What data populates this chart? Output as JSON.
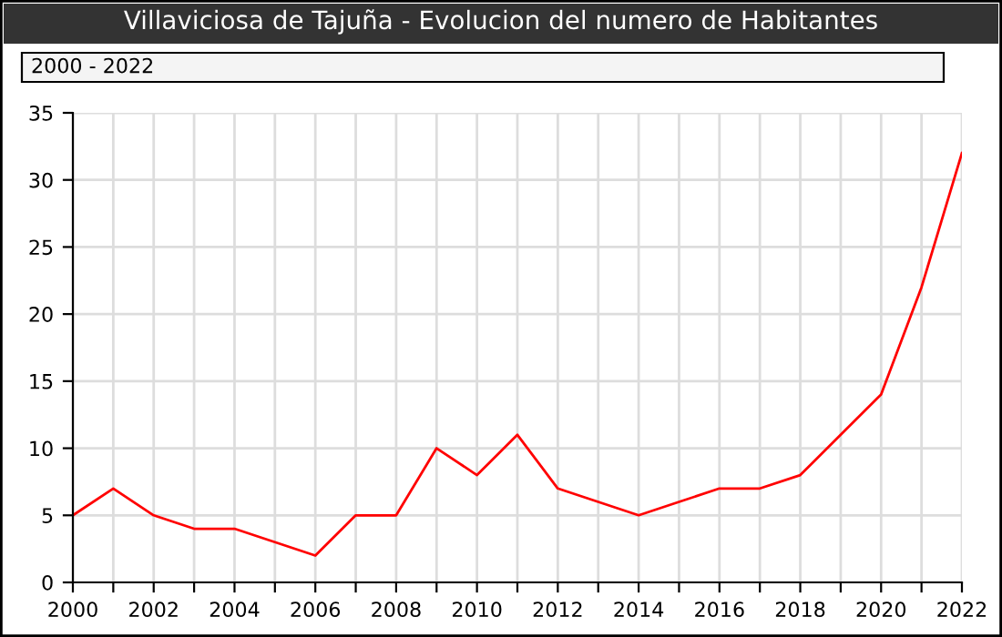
{
  "chart_data": {
    "type": "line",
    "title": "Villaviciosa de Tajuña - Evolucion del numero de Habitantes",
    "annotations": [
      "2000 - 2022"
    ],
    "x": [
      2000,
      2001,
      2002,
      2003,
      2004,
      2005,
      2006,
      2007,
      2008,
      2009,
      2010,
      2011,
      2012,
      2013,
      2014,
      2015,
      2016,
      2017,
      2018,
      2019,
      2020,
      2021,
      2022
    ],
    "series": [
      {
        "color": "#ff0000",
        "values": [
          5,
          7,
          5,
          4,
          4,
          3,
          2,
          5,
          5,
          10,
          8,
          11,
          7,
          6,
          5,
          6,
          7,
          7,
          8,
          11,
          14,
          22,
          32
        ]
      }
    ],
    "xlim": [
      2000,
      2022
    ],
    "xticks": [
      2000,
      {
        "value": 2001,
        "label": null
      },
      2002,
      {
        "value": 2003,
        "label": null
      },
      2004,
      {
        "value": 2005,
        "label": null
      },
      2006,
      {
        "value": 2007,
        "label": null
      },
      2008,
      {
        "value": 2009,
        "label": null
      },
      2010,
      {
        "value": 2011,
        "label": null
      },
      2012,
      {
        "value": 2013,
        "label": null
      },
      2014,
      {
        "value": 2015,
        "label": null
      },
      2016,
      {
        "value": 2017,
        "label": null
      },
      2018,
      {
        "value": 2019,
        "label": null
      },
      2020,
      {
        "value": 2021,
        "label": null
      },
      2022
    ],
    "ylim": [
      0,
      35
    ],
    "yticks": [
      0,
      5,
      10,
      15,
      20,
      25,
      30,
      35
    ],
    "grid": true,
    "marker": "none",
    "line_style": "solid"
  }
}
